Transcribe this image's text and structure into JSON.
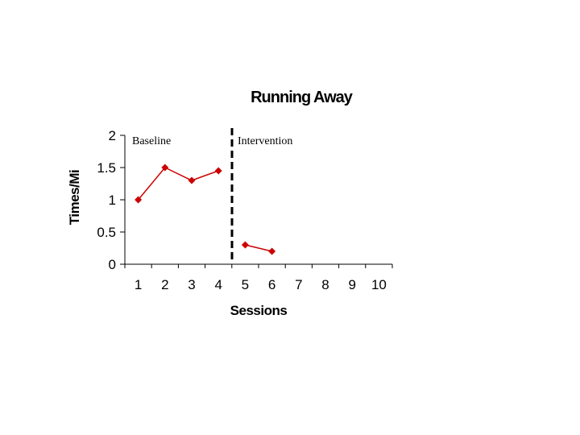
{
  "chart_data": {
    "type": "line",
    "title": "Running Away",
    "xlabel": "Sessions",
    "ylabel": "Times/Mi",
    "x_categories": [
      "1",
      "2",
      "3",
      "4",
      "5",
      "6",
      "7",
      "8",
      "9",
      "10"
    ],
    "yticks": [
      "0",
      "0.5",
      "1",
      "1.5",
      "2"
    ],
    "ylim": [
      0,
      2
    ],
    "grid": false,
    "legend": "none",
    "phases": [
      {
        "label": "Baseline",
        "sessions": [
          1,
          2,
          3,
          4
        ]
      },
      {
        "label": "Intervention",
        "sessions": [
          5,
          6,
          7,
          8,
          9,
          10
        ]
      }
    ],
    "phase_change_after_session": 4.5,
    "series": [
      {
        "color": "#cc0000",
        "segments": [
          {
            "x": [
              1,
              2,
              3,
              4
            ],
            "y": [
              1.0,
              1.5,
              1.3,
              1.45
            ]
          },
          {
            "x": [
              5,
              6
            ],
            "y": [
              0.3,
              0.2
            ]
          }
        ]
      }
    ]
  }
}
